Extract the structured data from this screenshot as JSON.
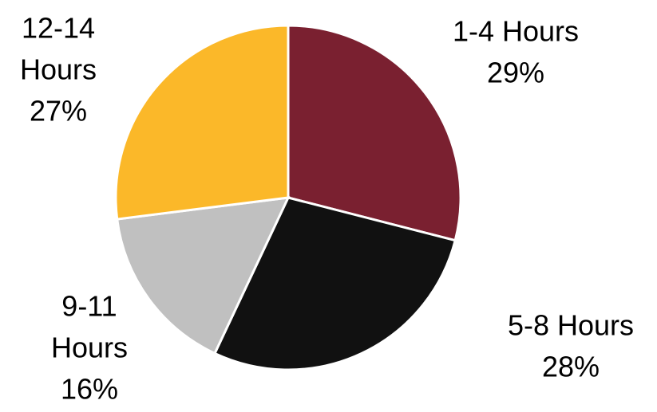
{
  "chart_data": {
    "type": "pie",
    "start_angle_deg": 0,
    "direction": "clockwise",
    "slices": [
      {
        "name_lines": [
          "1-4 Hours"
        ],
        "value": 29,
        "value_label": "29%",
        "color": "#7a2030"
      },
      {
        "name_lines": [
          "5-8 Hours"
        ],
        "value": 28,
        "value_label": "28%",
        "color": "#111111"
      },
      {
        "name_lines": [
          "9-11",
          "Hours"
        ],
        "value": 16,
        "value_label": "16%",
        "color": "#c0c0c0"
      },
      {
        "name_lines": [
          "12-14",
          "Hours"
        ],
        "value": 27,
        "value_label": "27%",
        "color": "#fbb829"
      }
    ]
  }
}
